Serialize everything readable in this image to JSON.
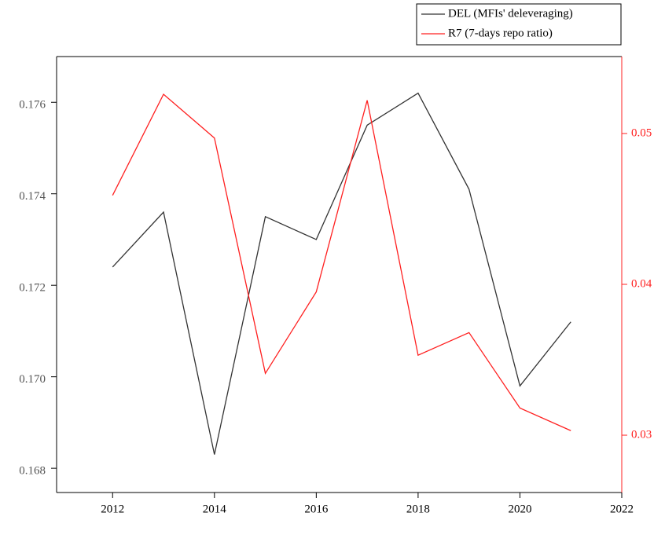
{
  "chart_data": {
    "type": "line",
    "x": [
      2012,
      2013,
      2014,
      2015,
      2016,
      2017,
      2018,
      2019,
      2020,
      2021
    ],
    "series": [
      {
        "name": "DEL (MFIs' deleveraging)",
        "color": "#333333",
        "values": [
          0.1724,
          0.1736,
          0.1683,
          0.1735,
          0.173,
          0.1755,
          0.1762,
          0.1741,
          0.1698,
          0.1712
        ]
      },
      {
        "name": "R7 (7-days repo ratio)",
        "color": "#ff2020",
        "axis": "y2",
        "values": [
          0.0459,
          0.0526,
          0.0497,
          0.0341,
          0.0395,
          0.0522,
          0.0353,
          0.0368,
          0.0318,
          0.0303
        ]
      }
    ],
    "xlim": [
      2010.9,
      2022
    ],
    "xticks": [
      2012,
      2014,
      2016,
      2018,
      2020,
      2022
    ],
    "ylim": [
      0.16747,
      0.177
    ],
    "yticks": [
      0.168,
      {
        "value": 0.17,
        "label": "0.170"
      },
      0.172,
      0.174,
      0.176
    ],
    "y2lim": [
      0.0262,
      0.0551
    ],
    "y2ticks": [
      0.03,
      0.04,
      0.05
    ],
    "y2color": "#ff2020",
    "legend": "top-right"
  }
}
